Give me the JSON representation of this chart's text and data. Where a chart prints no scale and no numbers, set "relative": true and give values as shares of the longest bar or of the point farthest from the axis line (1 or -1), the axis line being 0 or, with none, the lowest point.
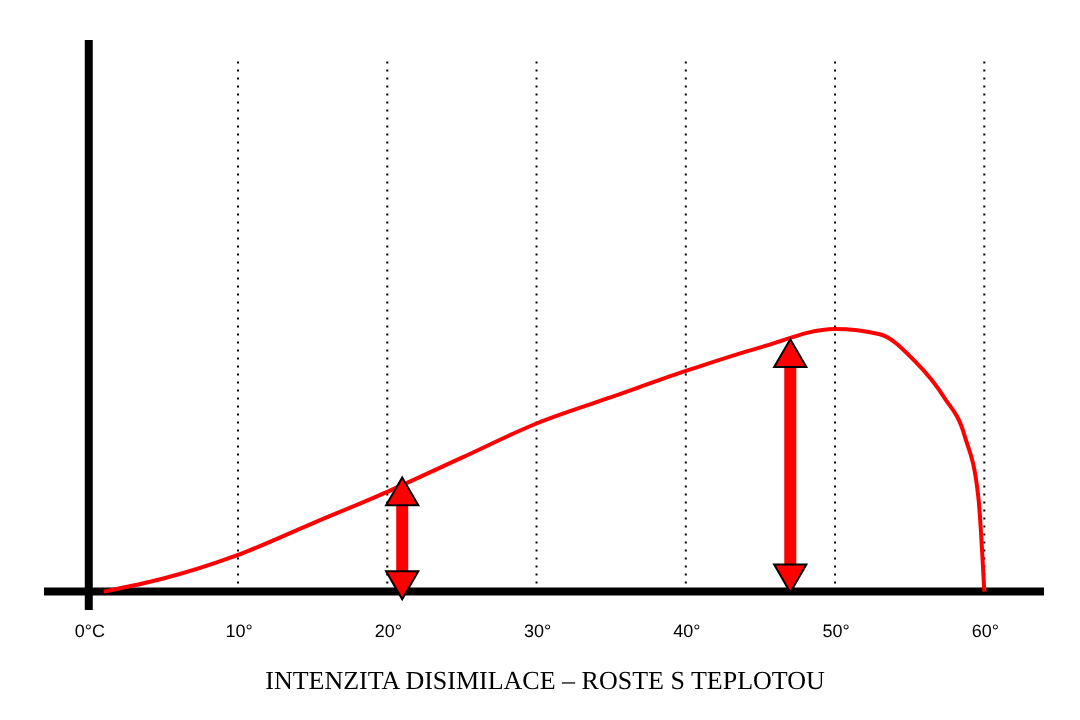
{
  "chart_data": {
    "type": "line",
    "relative": true,
    "title": "INTENZITA DISIMILACE – ROSTE S TEPLOTOU",
    "x": [
      1,
      5,
      10,
      15,
      20,
      25,
      30,
      35,
      40,
      45,
      50,
      53,
      55.3,
      57.3,
      58.7,
      59.6,
      60
    ],
    "series": [
      {
        "color": "#ff0000",
        "values": [
          0,
          0.05,
          0.14,
          0.26,
          0.38,
          0.51,
          0.64,
          0.74,
          0.84,
          0.93,
          1.0,
          0.98,
          0.88,
          0.74,
          0.59,
          0.36,
          0
        ]
      }
    ],
    "xlim": [
      -3,
      64
    ],
    "xticks": [
      {
        "value": 0,
        "label": "0°C"
      },
      {
        "value": 10,
        "label": "10°"
      },
      {
        "value": 20,
        "label": "20°"
      },
      {
        "value": 30,
        "label": "30°"
      },
      {
        "value": 40,
        "label": "40°"
      },
      {
        "value": 50,
        "label": "50°"
      },
      {
        "value": 60,
        "label": "60°"
      }
    ],
    "grid": "x",
    "marker": "none",
    "line_style": "solid"
  }
}
